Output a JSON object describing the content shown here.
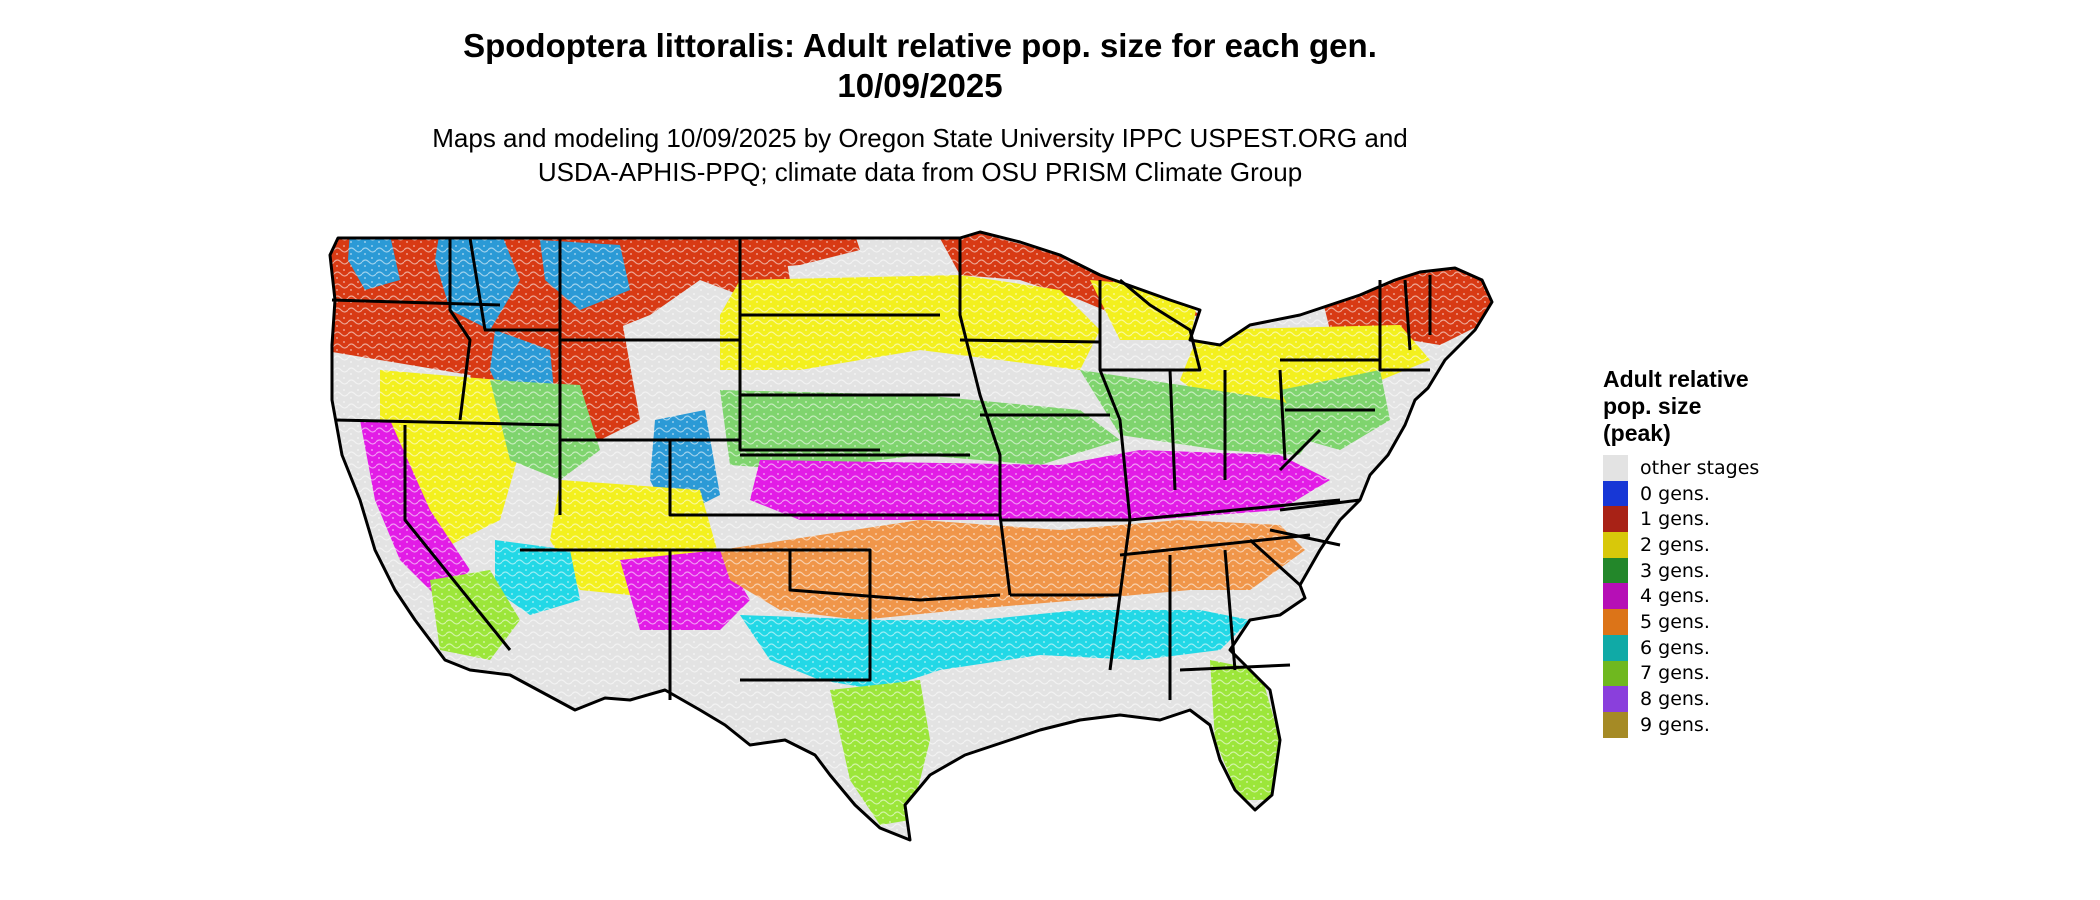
{
  "title": {
    "line1": "Spodoptera littoralis: Adult relative pop. size for each gen.",
    "line2": "10/09/2025"
  },
  "subtitle": {
    "line1": "Maps and modeling 10/09/2025 by Oregon State University IPPC USPEST.ORG and",
    "line2": "USDA-APHIS-PPQ; climate data from OSU PRISM Climate Group"
  },
  "legend": {
    "title_line1": "Adult relative",
    "title_line2": "pop. size",
    "title_line3": "(peak)",
    "items": [
      {
        "label": "other stages",
        "color": "#e3e3e3"
      },
      {
        "label": "0 gens.",
        "color": "#1737d6"
      },
      {
        "label": "1 gens.",
        "color": "#a82216"
      },
      {
        "label": "2 gens.",
        "color": "#d8c80a"
      },
      {
        "label": "3 gens.",
        "color": "#23872a"
      },
      {
        "label": "4 gens.",
        "color": "#b60fb6"
      },
      {
        "label": "5 gens.",
        "color": "#dc7418"
      },
      {
        "label": "6 gens.",
        "color": "#10aaa6"
      },
      {
        "label": "7 gens.",
        "color": "#6fb81f"
      },
      {
        "label": "8 gens.",
        "color": "#8a3fdc"
      },
      {
        "label": "9 gens.",
        "color": "#a58a25"
      }
    ]
  },
  "map": {
    "region": "Contiguous United States",
    "boundaries": "state borders",
    "zone_colors": {
      "other_stages": "#e3e3e3",
      "blue_0": "#2b9ad6",
      "red_1": "#d83a14",
      "yellow_2": "#f3f01e",
      "green_3": "#7fd46e",
      "magenta_4": "#e21ce6",
      "orange_5": "#f0964a",
      "cyan_6": "#22d8e6",
      "lime_7": "#9ce63a",
      "purple_8": "#9a6ae0"
    }
  }
}
